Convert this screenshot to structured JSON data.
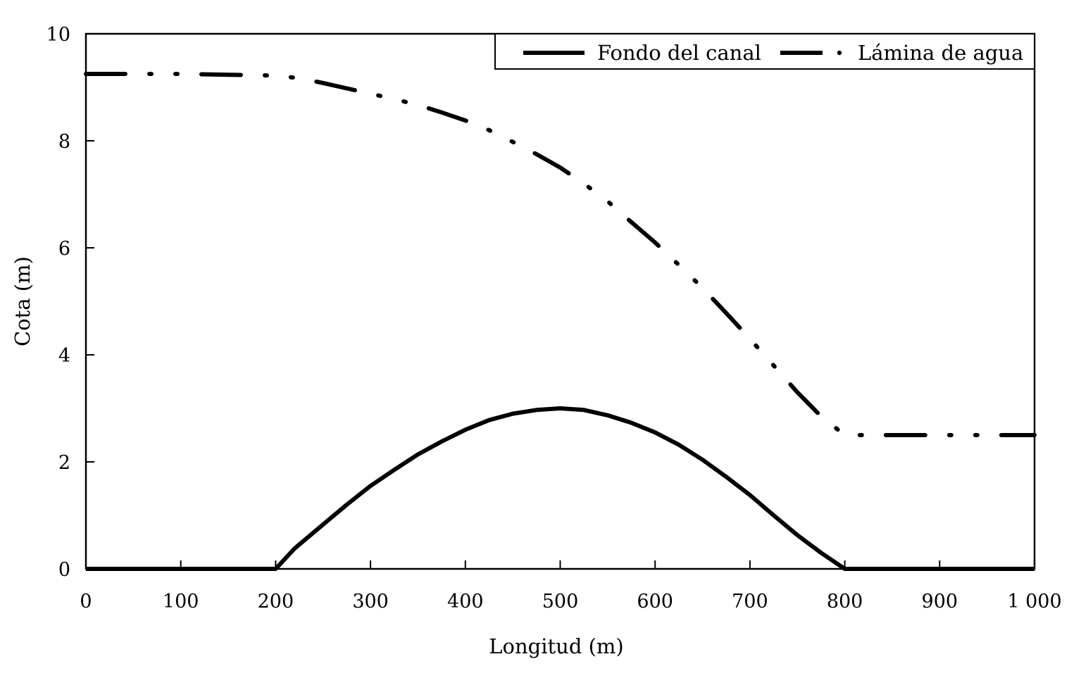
{
  "chart_data": {
    "type": "line",
    "title": "",
    "xlabel": "Longitud (m)",
    "ylabel": "Cota (m)",
    "xlim": [
      0,
      1000
    ],
    "ylim": [
      0,
      10
    ],
    "x_ticks": [
      0,
      100,
      200,
      300,
      400,
      500,
      600,
      700,
      800,
      900,
      1000
    ],
    "x_tick_labels": [
      "0",
      "100",
      "200",
      "300",
      "400",
      "500",
      "600",
      "700",
      "800",
      "900",
      "1 000"
    ],
    "y_ticks": [
      0,
      2,
      4,
      6,
      8,
      10
    ],
    "y_tick_labels": [
      "0",
      "2",
      "4",
      "6",
      "8",
      "10"
    ],
    "grid": false,
    "legend_position": "top-right",
    "series": [
      {
        "name": "Fondo del canal",
        "line_style": "solid",
        "color": "#000000",
        "x": [
          0,
          100,
          200,
          220,
          250,
          275,
          300,
          325,
          350,
          375,
          400,
          425,
          450,
          475,
          500,
          525,
          550,
          575,
          600,
          625,
          650,
          675,
          700,
          725,
          750,
          775,
          800,
          850,
          900,
          1000
        ],
        "y": [
          0,
          0,
          0,
          0.38,
          0.83,
          1.2,
          1.55,
          1.85,
          2.14,
          2.38,
          2.6,
          2.78,
          2.9,
          2.97,
          3.0,
          2.97,
          2.87,
          2.73,
          2.55,
          2.32,
          2.04,
          1.72,
          1.38,
          1.0,
          0.63,
          0.3,
          0,
          0,
          0,
          0
        ]
      },
      {
        "name": "Lámina de agua",
        "line_style": "dash-dot-dot",
        "color": "#000000",
        "x": [
          0,
          100,
          200,
          225,
          250,
          275,
          300,
          325,
          350,
          375,
          400,
          425,
          450,
          475,
          500,
          525,
          550,
          575,
          600,
          625,
          650,
          675,
          700,
          725,
          750,
          775,
          800,
          850,
          900,
          1000
        ],
        "y": [
          9.25,
          9.25,
          9.22,
          9.17,
          9.08,
          8.98,
          8.88,
          8.78,
          8.67,
          8.53,
          8.38,
          8.2,
          7.98,
          7.75,
          7.5,
          7.2,
          6.87,
          6.48,
          6.1,
          5.68,
          5.25,
          4.78,
          4.3,
          3.8,
          3.3,
          2.85,
          2.5,
          2.5,
          2.5,
          2.5
        ]
      }
    ]
  }
}
